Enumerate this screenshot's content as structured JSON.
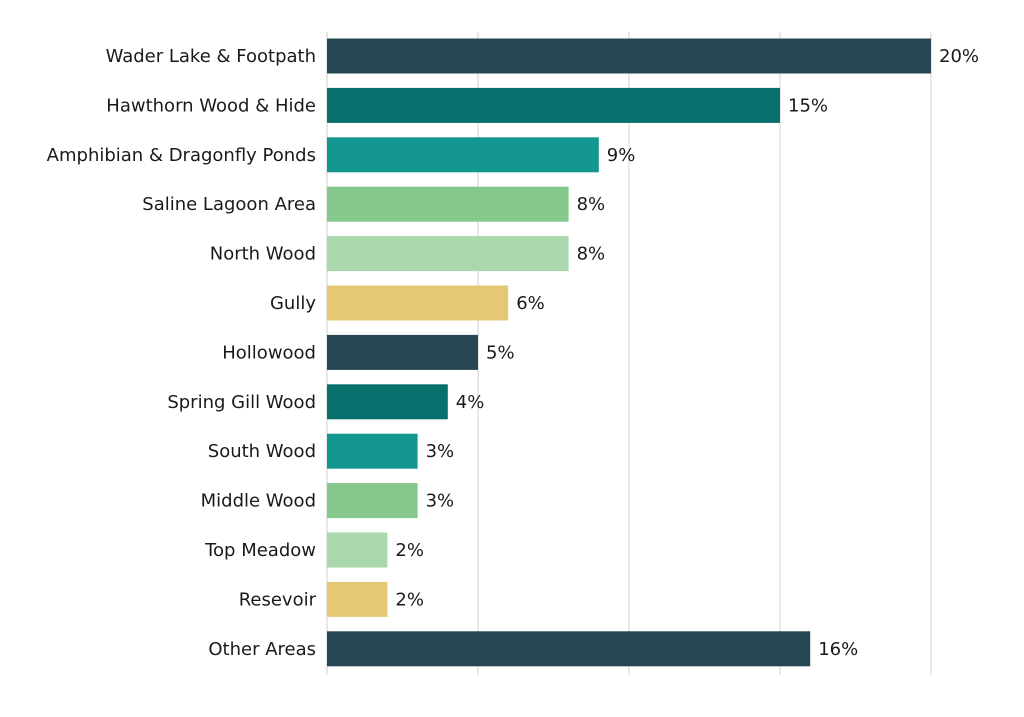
{
  "chart_data": {
    "type": "bar",
    "orientation": "horizontal",
    "categories": [
      "Wader Lake & Footpath",
      "Hawthorn Wood & Hide",
      "Amphibian & Dragonfly Ponds",
      "Saline Lagoon Area",
      "North Wood",
      "Gully",
      "Hollowood",
      "Spring Gill Wood",
      "South Wood",
      "Middle Wood",
      "Top Meadow",
      "Resevoir",
      "Other Areas"
    ],
    "values": [
      20,
      15,
      9,
      8,
      8,
      6,
      5,
      4,
      3,
      3,
      2,
      2,
      16
    ],
    "value_labels": [
      "20%",
      "15%",
      "9%",
      "8%",
      "8%",
      "6%",
      "5%",
      "4%",
      "3%",
      "3%",
      "2%",
      "2%",
      "16%"
    ],
    "bar_values_precise": [
      20,
      15,
      9,
      8,
      8,
      6,
      5,
      4,
      3,
      3,
      2,
      2,
      16
    ],
    "colors": [
      "#264653",
      "#08706c",
      "#12968f",
      "#84c98b",
      "#a8d8ab",
      "#e6c874",
      "#264653",
      "#08706c",
      "#12968f",
      "#84c98b",
      "#a8d8ab",
      "#e6c874",
      "#264653"
    ],
    "xlim": [
      0,
      20
    ],
    "grid": true,
    "grid_ticks": [
      0,
      5,
      10,
      15,
      20
    ],
    "title": "",
    "xlabel": "",
    "ylabel": "",
    "legend": "none"
  }
}
